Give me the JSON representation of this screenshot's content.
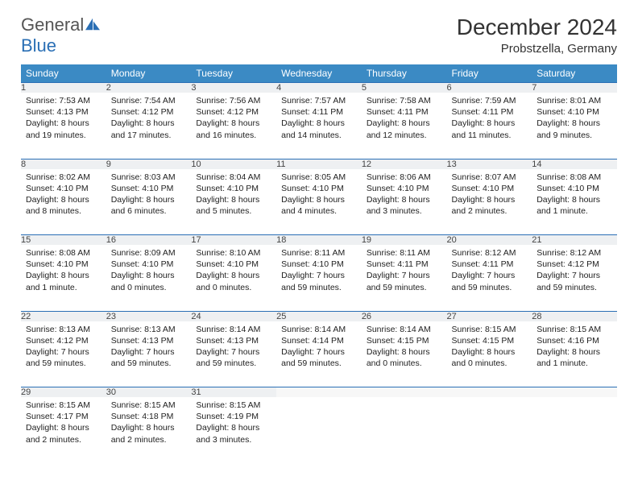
{
  "logo": {
    "general": "General",
    "blue": "Blue"
  },
  "title": "December 2024",
  "location": "Probstzella, Germany",
  "colors": {
    "header_bg": "#3b8ac4",
    "header_text": "#ffffff",
    "daynum_bg": "#eef0f2",
    "daynum_border": "#2a6fb5",
    "body_text": "#222222",
    "logo_gray": "#555555",
    "logo_blue": "#2a6fb5"
  },
  "weekdays": [
    "Sunday",
    "Monday",
    "Tuesday",
    "Wednesday",
    "Thursday",
    "Friday",
    "Saturday"
  ],
  "weeks": [
    [
      {
        "n": "1",
        "sr": "Sunrise: 7:53 AM",
        "ss": "Sunset: 4:13 PM",
        "d1": "Daylight: 8 hours",
        "d2": "and 19 minutes."
      },
      {
        "n": "2",
        "sr": "Sunrise: 7:54 AM",
        "ss": "Sunset: 4:12 PM",
        "d1": "Daylight: 8 hours",
        "d2": "and 17 minutes."
      },
      {
        "n": "3",
        "sr": "Sunrise: 7:56 AM",
        "ss": "Sunset: 4:12 PM",
        "d1": "Daylight: 8 hours",
        "d2": "and 16 minutes."
      },
      {
        "n": "4",
        "sr": "Sunrise: 7:57 AM",
        "ss": "Sunset: 4:11 PM",
        "d1": "Daylight: 8 hours",
        "d2": "and 14 minutes."
      },
      {
        "n": "5",
        "sr": "Sunrise: 7:58 AM",
        "ss": "Sunset: 4:11 PM",
        "d1": "Daylight: 8 hours",
        "d2": "and 12 minutes."
      },
      {
        "n": "6",
        "sr": "Sunrise: 7:59 AM",
        "ss": "Sunset: 4:11 PM",
        "d1": "Daylight: 8 hours",
        "d2": "and 11 minutes."
      },
      {
        "n": "7",
        "sr": "Sunrise: 8:01 AM",
        "ss": "Sunset: 4:10 PM",
        "d1": "Daylight: 8 hours",
        "d2": "and 9 minutes."
      }
    ],
    [
      {
        "n": "8",
        "sr": "Sunrise: 8:02 AM",
        "ss": "Sunset: 4:10 PM",
        "d1": "Daylight: 8 hours",
        "d2": "and 8 minutes."
      },
      {
        "n": "9",
        "sr": "Sunrise: 8:03 AM",
        "ss": "Sunset: 4:10 PM",
        "d1": "Daylight: 8 hours",
        "d2": "and 6 minutes."
      },
      {
        "n": "10",
        "sr": "Sunrise: 8:04 AM",
        "ss": "Sunset: 4:10 PM",
        "d1": "Daylight: 8 hours",
        "d2": "and 5 minutes."
      },
      {
        "n": "11",
        "sr": "Sunrise: 8:05 AM",
        "ss": "Sunset: 4:10 PM",
        "d1": "Daylight: 8 hours",
        "d2": "and 4 minutes."
      },
      {
        "n": "12",
        "sr": "Sunrise: 8:06 AM",
        "ss": "Sunset: 4:10 PM",
        "d1": "Daylight: 8 hours",
        "d2": "and 3 minutes."
      },
      {
        "n": "13",
        "sr": "Sunrise: 8:07 AM",
        "ss": "Sunset: 4:10 PM",
        "d1": "Daylight: 8 hours",
        "d2": "and 2 minutes."
      },
      {
        "n": "14",
        "sr": "Sunrise: 8:08 AM",
        "ss": "Sunset: 4:10 PM",
        "d1": "Daylight: 8 hours",
        "d2": "and 1 minute."
      }
    ],
    [
      {
        "n": "15",
        "sr": "Sunrise: 8:08 AM",
        "ss": "Sunset: 4:10 PM",
        "d1": "Daylight: 8 hours",
        "d2": "and 1 minute."
      },
      {
        "n": "16",
        "sr": "Sunrise: 8:09 AM",
        "ss": "Sunset: 4:10 PM",
        "d1": "Daylight: 8 hours",
        "d2": "and 0 minutes."
      },
      {
        "n": "17",
        "sr": "Sunrise: 8:10 AM",
        "ss": "Sunset: 4:10 PM",
        "d1": "Daylight: 8 hours",
        "d2": "and 0 minutes."
      },
      {
        "n": "18",
        "sr": "Sunrise: 8:11 AM",
        "ss": "Sunset: 4:10 PM",
        "d1": "Daylight: 7 hours",
        "d2": "and 59 minutes."
      },
      {
        "n": "19",
        "sr": "Sunrise: 8:11 AM",
        "ss": "Sunset: 4:11 PM",
        "d1": "Daylight: 7 hours",
        "d2": "and 59 minutes."
      },
      {
        "n": "20",
        "sr": "Sunrise: 8:12 AM",
        "ss": "Sunset: 4:11 PM",
        "d1": "Daylight: 7 hours",
        "d2": "and 59 minutes."
      },
      {
        "n": "21",
        "sr": "Sunrise: 8:12 AM",
        "ss": "Sunset: 4:12 PM",
        "d1": "Daylight: 7 hours",
        "d2": "and 59 minutes."
      }
    ],
    [
      {
        "n": "22",
        "sr": "Sunrise: 8:13 AM",
        "ss": "Sunset: 4:12 PM",
        "d1": "Daylight: 7 hours",
        "d2": "and 59 minutes."
      },
      {
        "n": "23",
        "sr": "Sunrise: 8:13 AM",
        "ss": "Sunset: 4:13 PM",
        "d1": "Daylight: 7 hours",
        "d2": "and 59 minutes."
      },
      {
        "n": "24",
        "sr": "Sunrise: 8:14 AM",
        "ss": "Sunset: 4:13 PM",
        "d1": "Daylight: 7 hours",
        "d2": "and 59 minutes."
      },
      {
        "n": "25",
        "sr": "Sunrise: 8:14 AM",
        "ss": "Sunset: 4:14 PM",
        "d1": "Daylight: 7 hours",
        "d2": "and 59 minutes."
      },
      {
        "n": "26",
        "sr": "Sunrise: 8:14 AM",
        "ss": "Sunset: 4:15 PM",
        "d1": "Daylight: 8 hours",
        "d2": "and 0 minutes."
      },
      {
        "n": "27",
        "sr": "Sunrise: 8:15 AM",
        "ss": "Sunset: 4:15 PM",
        "d1": "Daylight: 8 hours",
        "d2": "and 0 minutes."
      },
      {
        "n": "28",
        "sr": "Sunrise: 8:15 AM",
        "ss": "Sunset: 4:16 PM",
        "d1": "Daylight: 8 hours",
        "d2": "and 1 minute."
      }
    ],
    [
      {
        "n": "29",
        "sr": "Sunrise: 8:15 AM",
        "ss": "Sunset: 4:17 PM",
        "d1": "Daylight: 8 hours",
        "d2": "and 2 minutes."
      },
      {
        "n": "30",
        "sr": "Sunrise: 8:15 AM",
        "ss": "Sunset: 4:18 PM",
        "d1": "Daylight: 8 hours",
        "d2": "and 2 minutes."
      },
      {
        "n": "31",
        "sr": "Sunrise: 8:15 AM",
        "ss": "Sunset: 4:19 PM",
        "d1": "Daylight: 8 hours",
        "d2": "and 3 minutes."
      },
      null,
      null,
      null,
      null
    ]
  ]
}
